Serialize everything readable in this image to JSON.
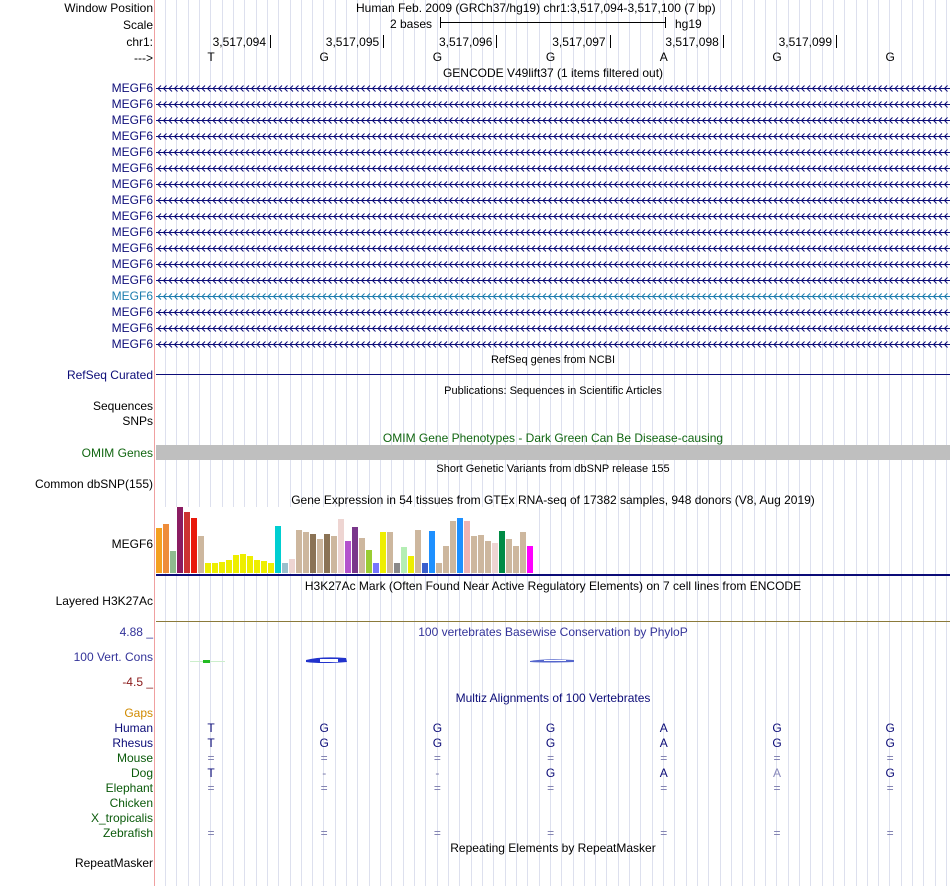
{
  "colors": {
    "gene": "#0c0c78",
    "gene_highlight": "#1c7cae",
    "multiz_green": "#0a5a0a",
    "gaps_orange": "#d08a00",
    "cons_blue": "#333399",
    "cons_neg": "#8a1a1a",
    "omim_green": "#116611",
    "omim_bar": "#bfbfbf",
    "base_blue": "#0c0c78"
  },
  "header": {
    "window_position_label": "Window Position",
    "position_text": "Human Feb. 2009 (GRCh37/hg19)   chr1:3,517,094-3,517,100 (7 bp)",
    "scale_label": "Scale",
    "scale_text": "2 bases",
    "scale_db": "hg19",
    "chrom_label": "chr1:",
    "strand_label": "--->",
    "ruler_positions": [
      "3,517,094",
      "3,517,095",
      "3,517,096",
      "3,517,097",
      "3,517,098",
      "3,517,099"
    ],
    "bases": [
      "T",
      "G",
      "G",
      "G",
      "A",
      "G",
      "G"
    ]
  },
  "gencode": {
    "title": "GENCODE V49lift37 (1 items filtered out)",
    "rows": [
      {
        "label": "MEGF6",
        "highlight": false
      },
      {
        "label": "MEGF6",
        "highlight": false
      },
      {
        "label": "MEGF6",
        "highlight": false
      },
      {
        "label": "MEGF6",
        "highlight": false
      },
      {
        "label": "MEGF6",
        "highlight": false
      },
      {
        "label": "MEGF6",
        "highlight": false
      },
      {
        "label": "MEGF6",
        "highlight": false
      },
      {
        "label": "MEGF6",
        "highlight": false
      },
      {
        "label": "MEGF6",
        "highlight": false
      },
      {
        "label": "MEGF6",
        "highlight": false
      },
      {
        "label": "MEGF6",
        "highlight": false
      },
      {
        "label": "MEGF6",
        "highlight": false
      },
      {
        "label": "MEGF6",
        "highlight": false
      },
      {
        "label": "MEGF6",
        "highlight": true
      },
      {
        "label": "MEGF6",
        "highlight": false
      },
      {
        "label": "MEGF6",
        "highlight": false
      },
      {
        "label": "MEGF6",
        "highlight": false
      }
    ]
  },
  "refseq": {
    "title": "RefSeq genes from NCBI",
    "label": "RefSeq Curated"
  },
  "publications": {
    "title": "Publications: Sequences in Scientific Articles",
    "label1": "Sequences",
    "label2": "SNPs"
  },
  "omim": {
    "title": "OMIM Gene Phenotypes - Dark Green Can Be Disease-causing",
    "label": "OMIM Genes"
  },
  "dbsnp": {
    "title": "Short Genetic Variants from dbSNP release 155",
    "label": "Common dbSNP(155)"
  },
  "gtex": {
    "title": "Gene Expression in 54 tissues from GTEx RNA-seq of 17382 samples, 948 donors (V8, Aug 2019)",
    "label": "MEGF6",
    "max": 65,
    "values": [
      44,
      48,
      22,
      65,
      60,
      54,
      36,
      10,
      10,
      11,
      13,
      18,
      19,
      17,
      13,
      12,
      10,
      46,
      10,
      14,
      42,
      40,
      38,
      33,
      38,
      36,
      53,
      32,
      45,
      34,
      23,
      10,
      40,
      40,
      10,
      26,
      17,
      42,
      10,
      41,
      10,
      27,
      51,
      54,
      51,
      36,
      37,
      32,
      30,
      41,
      33,
      27,
      40,
      27
    ],
    "bar_colors": [
      "#f4a020",
      "#ee8c3a",
      "#8fbc8f",
      "#8b1c62",
      "#cd3333",
      "#e8190c",
      "#cdb79e",
      "#eeee00",
      "#eeee00",
      "#eeee00",
      "#eeee00",
      "#eeee00",
      "#eeee00",
      "#eeee00",
      "#eeee00",
      "#eeee00",
      "#eeee00",
      "#00ced1",
      "#9ac0cd",
      "#eed5d2",
      "#cdb79e",
      "#cdb79e",
      "#8b7355",
      "#cdb79e",
      "#8b7355",
      "#cdb79e",
      "#eed5d2",
      "#b452cd",
      "#7a378b",
      "#cdb79e",
      "#9acd32",
      "#7777ff",
      "#eeee00",
      "#cdb79e",
      "#8b8989",
      "#b4eeb4",
      "#eeee00",
      "#cdb79e",
      "#3a5fcd",
      "#1e90ff",
      "#cdb79e",
      "#cdb79e",
      "#cdb79e",
      "#1e90ff",
      "#eeb4b4",
      "#cdb79e",
      "#cdb79e",
      "#cdb79e",
      "#eed5d2",
      "#008b45",
      "#cdb79e",
      "#cdb79e",
      "#cdb79e",
      "#ff00ff"
    ]
  },
  "h3k27ac": {
    "title": "H3K27Ac Mark (Often Found Near Active Regulatory Elements) on 7 cell lines from ENCODE",
    "label": "Layered H3K27Ac"
  },
  "phylop": {
    "title": "100 vertebrates Basewise Conservation by PhyloP",
    "label": "100 Vert. Cons",
    "max_label": "4.88 _",
    "min_label": "-4.5 _"
  },
  "multiz": {
    "title": "Multiz Alignments of 100 Vertebrates",
    "gaps_label": "Gaps",
    "species": [
      {
        "name": "Human",
        "bases": [
          "T",
          "G",
          "G",
          "G",
          "A",
          "G",
          "G"
        ],
        "dark": true
      },
      {
        "name": "Rhesus",
        "bases": [
          "T",
          "G",
          "G",
          "G",
          "A",
          "G",
          "G"
        ],
        "dark": true
      },
      {
        "name": "Mouse",
        "bases": [
          "=",
          "=",
          "=",
          "=",
          "=",
          "=",
          "="
        ],
        "dark": false
      },
      {
        "name": "Dog",
        "bases": [
          "T",
          "-",
          "-",
          "G",
          "A",
          "A",
          "G"
        ],
        "dark": false
      },
      {
        "name": "Elephant",
        "bases": [
          "=",
          "=",
          "=",
          "=",
          "=",
          "=",
          "="
        ],
        "dark": false
      },
      {
        "name": "Chicken",
        "bases": [
          "",
          "",
          "",
          "",
          "",
          "",
          ""
        ],
        "dark": false
      },
      {
        "name": "X_tropicalis",
        "bases": [
          "",
          "",
          "",
          "",
          "",
          "",
          ""
        ],
        "dark": false
      },
      {
        "name": "Zebrafish",
        "bases": [
          "=",
          "=",
          "=",
          "=",
          "=",
          "=",
          "="
        ],
        "dark": false
      }
    ]
  },
  "repeatmasker": {
    "title": "Repeating Elements by RepeatMasker",
    "label": "RepeatMasker"
  }
}
